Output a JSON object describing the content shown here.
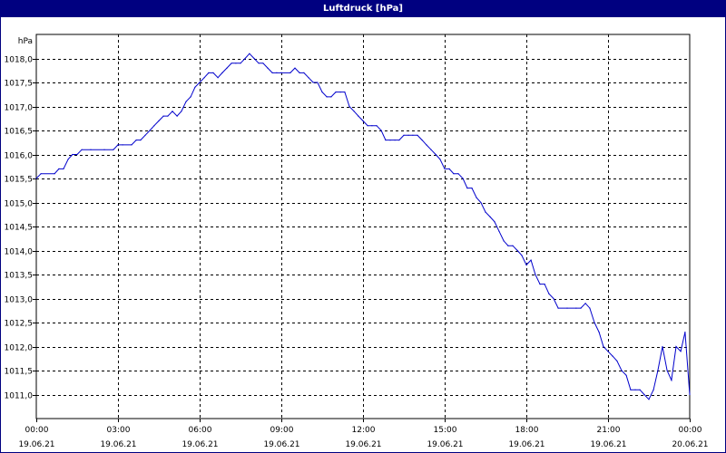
{
  "window": {
    "title": "Luftdruck [hPa]"
  },
  "chart_data": {
    "type": "line",
    "title": "Luftdruck [hPa]",
    "ylabel": "hPa",
    "ylim": [
      1010.5,
      1018.5
    ],
    "yticks": [
      1011.0,
      1011.5,
      1012.0,
      1012.5,
      1013.0,
      1013.5,
      1014.0,
      1014.5,
      1015.0,
      1015.5,
      1016.0,
      1016.5,
      1017.0,
      1017.5,
      1018.0
    ],
    "ytick_labels": [
      "1011,0",
      "1011,5",
      "1012,0",
      "1012,5",
      "1013,0",
      "1013,5",
      "1014,0",
      "1014,5",
      "1015,0",
      "1015,5",
      "1016,0",
      "1016,5",
      "1017,0",
      "1017,5",
      "1018,0"
    ],
    "xlim_hours": [
      0,
      24
    ],
    "xticks": [
      {
        "hour": 0,
        "time": "00:00",
        "date": "19.06.21"
      },
      {
        "hour": 3,
        "time": "03:00",
        "date": "19.06.21"
      },
      {
        "hour": 6,
        "time": "06:00",
        "date": "19.06.21"
      },
      {
        "hour": 9,
        "time": "09:00",
        "date": "19.06.21"
      },
      {
        "hour": 12,
        "time": "12:00",
        "date": "19.06.21"
      },
      {
        "hour": 15,
        "time": "15:00",
        "date": "19.06.21"
      },
      {
        "hour": 18,
        "time": "18:00",
        "date": "19.06.21"
      },
      {
        "hour": 21,
        "time": "21:00",
        "date": "19.06.21"
      },
      {
        "hour": 24,
        "time": "00:00",
        "date": "20.06.21"
      }
    ],
    "grid": true,
    "series": [
      {
        "color": "#0000cc",
        "x": [
          0,
          0.17,
          0.67,
          0.83,
          1.0,
          1.17,
          1.33,
          1.5,
          1.67,
          2.0,
          2.5,
          2.83,
          3.0,
          3.17,
          3.5,
          3.67,
          3.83,
          4.0,
          4.17,
          4.33,
          4.5,
          4.67,
          4.83,
          5.0,
          5.17,
          5.33,
          5.5,
          5.67,
          5.83,
          6.0,
          6.17,
          6.33,
          6.5,
          6.67,
          6.83,
          7.0,
          7.17,
          7.33,
          7.5,
          7.67,
          7.83,
          8.0,
          8.17,
          8.33,
          8.5,
          8.67,
          8.83,
          9.0,
          9.33,
          9.5,
          9.67,
          9.83,
          10.0,
          10.17,
          10.33,
          10.5,
          10.67,
          10.83,
          11.0,
          11.17,
          11.33,
          11.5,
          11.67,
          11.83,
          12.0,
          12.17,
          12.33,
          12.5,
          12.67,
          12.83,
          13.0,
          13.17,
          13.33,
          13.5,
          13.67,
          13.83,
          14.0,
          14.17,
          14.33,
          14.5,
          14.67,
          14.83,
          15.0,
          15.17,
          15.33,
          15.5,
          15.67,
          15.83,
          16.0,
          16.17,
          16.33,
          16.5,
          16.67,
          16.83,
          17.0,
          17.17,
          17.33,
          17.5,
          17.67,
          17.83,
          18.0,
          18.17,
          18.33,
          18.5,
          18.67,
          18.83,
          19.0,
          19.17,
          19.5,
          19.83,
          20.0,
          20.17,
          20.33,
          20.5,
          20.67,
          20.83,
          21.0,
          21.17,
          21.33,
          21.5,
          21.67,
          21.83,
          22.0,
          22.17,
          22.33,
          22.5,
          22.67,
          22.83,
          23.0,
          23.17,
          23.33,
          23.5,
          23.67,
          23.83,
          24.0
        ],
        "values": [
          1015.5,
          1015.6,
          1015.6,
          1015.7,
          1015.7,
          1015.9,
          1016.0,
          1016.0,
          1016.1,
          1016.1,
          1016.1,
          1016.1,
          1016.2,
          1016.2,
          1016.2,
          1016.3,
          1016.3,
          1016.4,
          1016.5,
          1016.6,
          1016.7,
          1016.8,
          1016.8,
          1016.9,
          1016.8,
          1016.9,
          1017.1,
          1017.2,
          1017.4,
          1017.5,
          1017.6,
          1017.7,
          1017.7,
          1017.6,
          1017.7,
          1017.8,
          1017.9,
          1017.9,
          1017.9,
          1018.0,
          1018.1,
          1018.0,
          1017.9,
          1017.9,
          1017.8,
          1017.7,
          1017.7,
          1017.7,
          1017.7,
          1017.8,
          1017.7,
          1017.7,
          1017.6,
          1017.5,
          1017.5,
          1017.3,
          1017.2,
          1017.2,
          1017.3,
          1017.3,
          1017.3,
          1017.0,
          1016.9,
          1016.8,
          1016.7,
          1016.6,
          1016.6,
          1016.6,
          1016.5,
          1016.3,
          1016.3,
          1016.3,
          1016.3,
          1016.4,
          1016.4,
          1016.4,
          1016.4,
          1016.3,
          1016.2,
          1016.1,
          1016.0,
          1015.9,
          1015.7,
          1015.7,
          1015.6,
          1015.6,
          1015.5,
          1015.3,
          1015.3,
          1015.1,
          1015.0,
          1014.8,
          1014.7,
          1014.6,
          1014.4,
          1014.2,
          1014.1,
          1014.1,
          1014.0,
          1013.9,
          1013.7,
          1013.8,
          1013.5,
          1013.3,
          1013.3,
          1013.1,
          1013.0,
          1012.8,
          1012.8,
          1012.8,
          1012.8,
          1012.9,
          1012.8,
          1012.5,
          1012.3,
          1012.0,
          1011.9,
          1011.8,
          1011.7,
          1011.5,
          1011.4,
          1011.1,
          1011.1,
          1011.1,
          1011.0,
          1010.9,
          1011.1,
          1011.5,
          1012.0,
          1011.5,
          1011.3,
          1012.0,
          1011.9,
          1012.3,
          1011.0
        ]
      }
    ]
  }
}
